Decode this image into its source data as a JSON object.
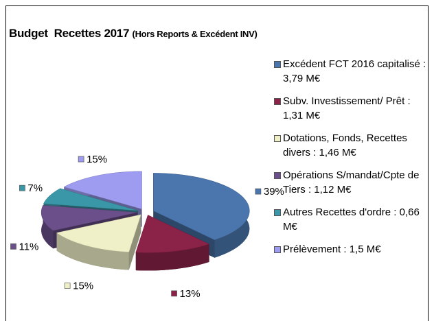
{
  "chart_data": {
    "type": "pie3d",
    "title": "Budget  Recettes 2017",
    "subtitle": "(Hors Reports & Excédent INV)",
    "categories": [
      "Excédent FCT 2016 capitalisé : 3,79 M€",
      "Subv. Investissement/ Prêt : 1,31 M€",
      "Dotations, Fonds, Recettes divers : 1,46 M€",
      "Opérations S/mandat/Cpte de Tiers : 1,12 M€",
      "Autres Recettes d'ordre : 0,66 M€",
      "Prélèvement : 1,5 M€"
    ],
    "values": [
      39,
      13,
      15,
      11,
      7,
      15
    ],
    "value_labels": [
      "39%",
      "13%",
      "15%",
      "11%",
      "7%",
      "15%"
    ],
    "colors": [
      "#4a76ad",
      "#8b2248",
      "#f0f0c8",
      "#6a4f8a",
      "#3a97a8",
      "#9e9cf0"
    ],
    "legend": "right"
  }
}
